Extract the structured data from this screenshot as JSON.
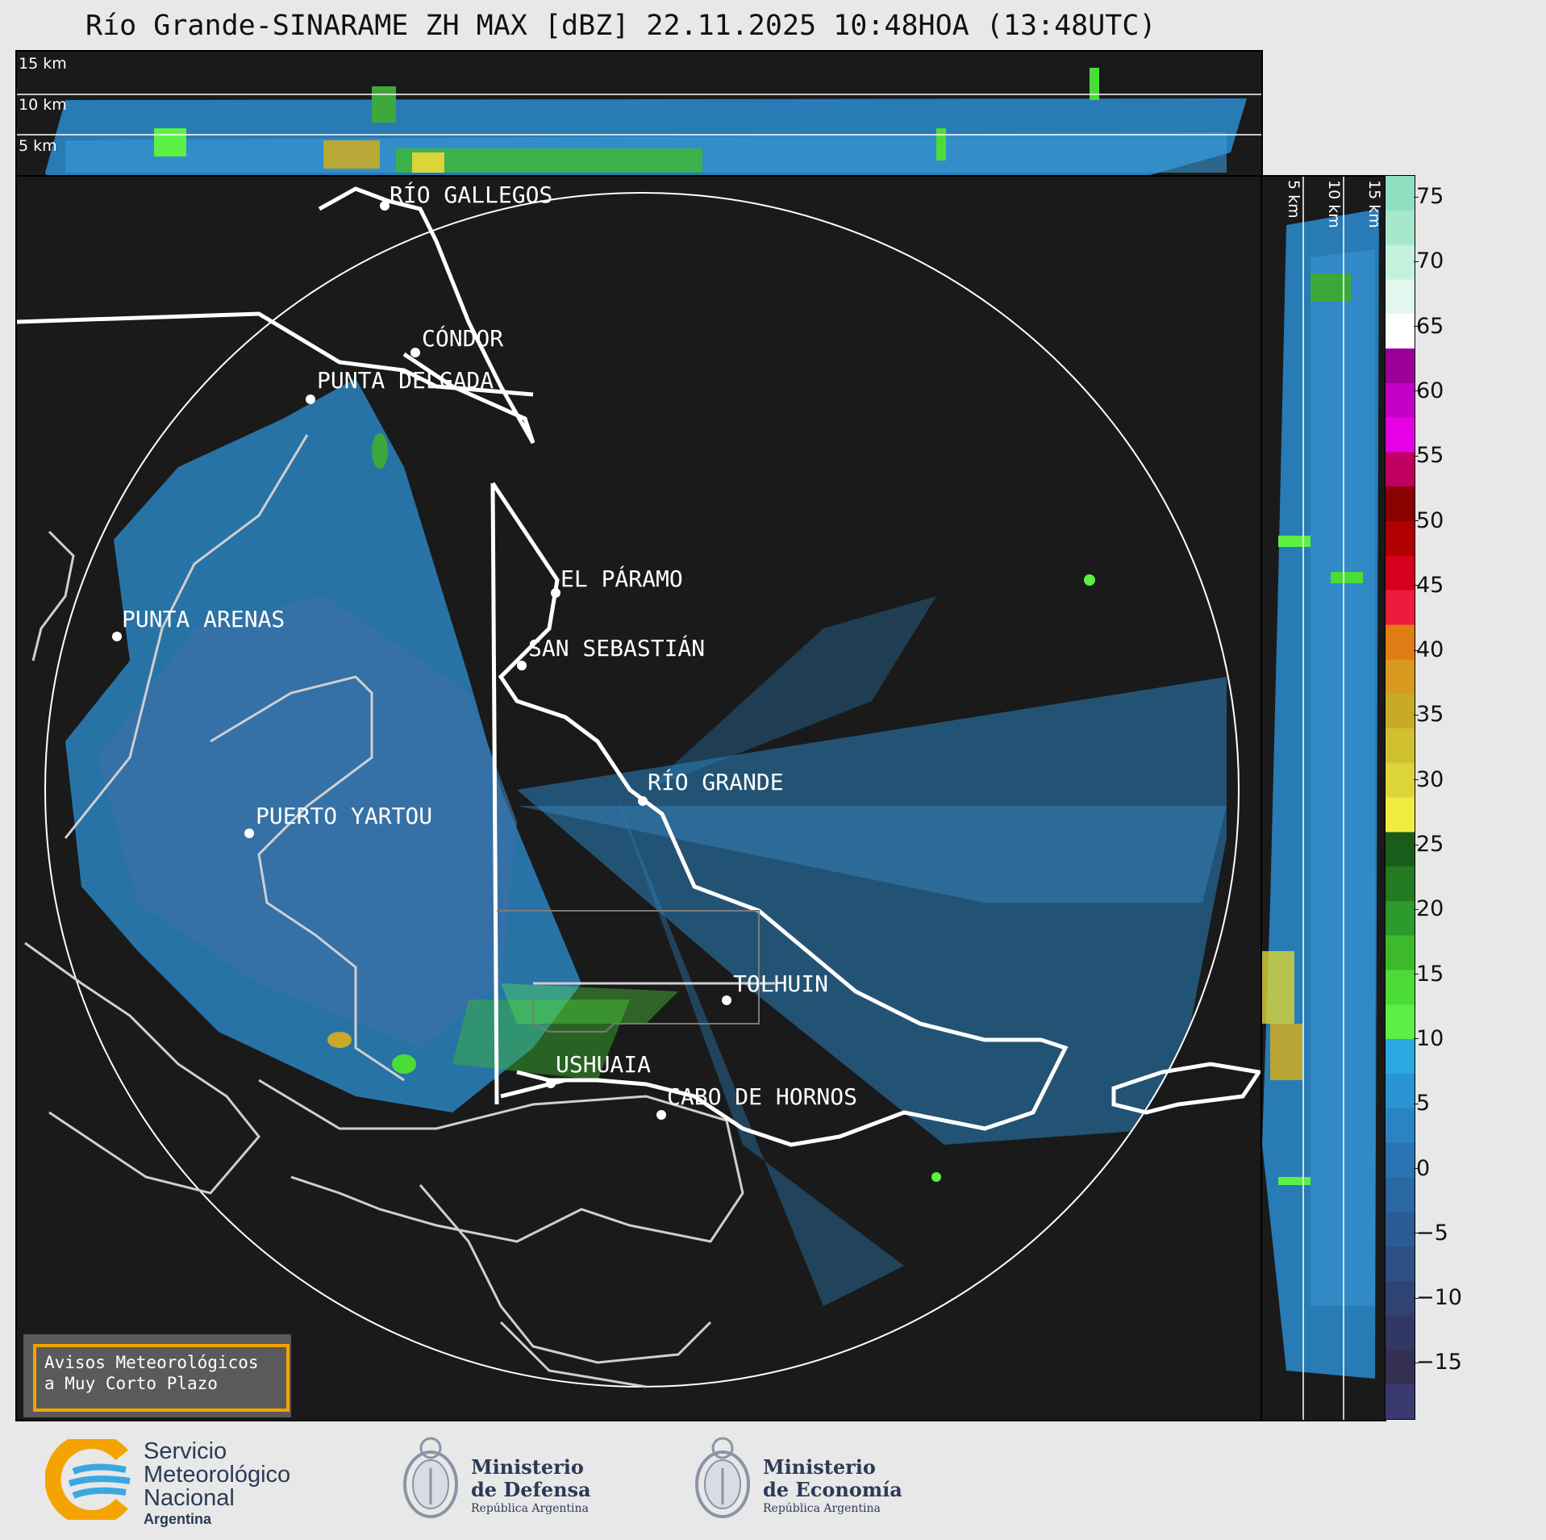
{
  "title": "Río Grande-SINARAME ZH MAX [dBZ] 22.11.2025 10:48HOA (13:48UTC)",
  "top_panel": {
    "height_labels": [
      "15 km",
      "10 km",
      "5 km"
    ]
  },
  "side_panel": {
    "height_labels": [
      "5 km",
      "10 km",
      "15 km"
    ]
  },
  "map": {
    "cities": [
      {
        "name": "RÍO GALLEGOS"
      },
      {
        "name": "CÓNDOR"
      },
      {
        "name": "PUNTA DELGADA"
      },
      {
        "name": "EL PÁRAMO"
      },
      {
        "name": "SAN SEBASTIÁN"
      },
      {
        "name": "PUNTA ARENAS"
      },
      {
        "name": "RÍO GRANDE"
      },
      {
        "name": "PUERTO YARTOU"
      },
      {
        "name": "TOLHUIN"
      },
      {
        "name": "USHUAIA"
      },
      {
        "name": "CABO DE HORNOS"
      }
    ]
  },
  "colorbar": {
    "unit": "dBZ",
    "ticks": [
      "75",
      "70",
      "65",
      "60",
      "55",
      "50",
      "45",
      "40",
      "35",
      "30",
      "25",
      "20",
      "15",
      "10",
      "5",
      "0",
      "−5",
      "−10",
      "−15"
    ],
    "colors": [
      "#8fe0c0",
      "#a6e8cc",
      "#c4f0de",
      "#e2f8ee",
      "#ffffff",
      "#9b009b",
      "#c400c4",
      "#e600e6",
      "#c00060",
      "#8b0000",
      "#b00000",
      "#d4001c",
      "#ee1c3c",
      "#e07c14",
      "#d89a1c",
      "#c8aa28",
      "#d0c030",
      "#dcd438",
      "#f0ec40",
      "#1a5c1a",
      "#227a22",
      "#2c9a2c",
      "#3cba2c",
      "#4cdc38",
      "#5cf044",
      "#2aa8e0",
      "#2a94d4",
      "#2a84c4",
      "#2a74b4",
      "#2a68a4",
      "#2c5c94",
      "#2e5084",
      "#304474",
      "#323864",
      "#343054",
      "#3a3a70"
    ]
  },
  "notice": {
    "line1": "Avisos Meteorológicos",
    "line2": "a Muy Corto Plazo"
  },
  "logos": {
    "smn": {
      "line1": "Servicio",
      "line2": "Meteorológico",
      "line3": "Nacional",
      "line4": "Argentina"
    },
    "defensa": {
      "line1": "Ministerio",
      "line2": "de Defensa",
      "line3": "República Argentina"
    },
    "economia": {
      "line1": "Ministerio",
      "line2": "de Economía",
      "line3": "República Argentina"
    }
  }
}
